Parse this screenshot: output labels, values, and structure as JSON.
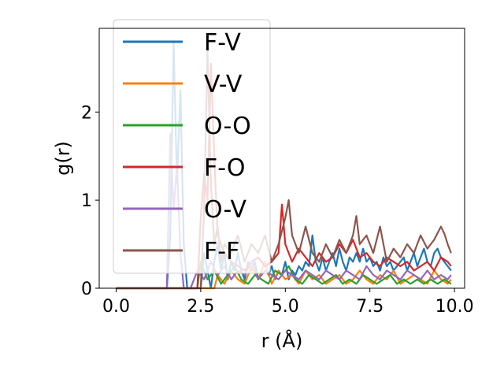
{
  "chart_data": {
    "type": "line",
    "title": "",
    "xlabel": "r (Å)",
    "ylabel": "g(r)",
    "xlim": [
      -0.5,
      10.3
    ],
    "ylim": [
      0,
      2.95
    ],
    "xticks": [
      0.0,
      2.5,
      5.0,
      7.5,
      10.0
    ],
    "xtick_labels": [
      "0.0",
      "2.5",
      "5.0",
      "7.5",
      "10.0"
    ],
    "yticks": [
      0,
      1,
      2
    ],
    "ytick_labels": [
      "0",
      "1",
      "2"
    ],
    "grid": false,
    "legend_position": "upper-left",
    "series": [
      {
        "name": "F-V",
        "color": "#1f77b4",
        "x": [
          0.0,
          1.4,
          1.5,
          1.6,
          1.7,
          1.8,
          1.9,
          2.0,
          2.1,
          2.2,
          2.3,
          2.4,
          2.5,
          2.6,
          2.7,
          2.8,
          2.9,
          3.0,
          3.1,
          3.2,
          3.3,
          3.4,
          3.5,
          3.6,
          3.7,
          3.8,
          3.9,
          4.0,
          4.1,
          4.2,
          4.3,
          4.4,
          4.5,
          4.6,
          4.7,
          4.8,
          4.9,
          5.0,
          5.1,
          5.2,
          5.3,
          5.4,
          5.5,
          5.6,
          5.7,
          5.8,
          5.9,
          6.0,
          6.1,
          6.2,
          6.3,
          6.4,
          6.5,
          6.6,
          6.7,
          6.8,
          6.9,
          7.0,
          7.1,
          7.2,
          7.3,
          7.4,
          7.5,
          7.6,
          7.7,
          7.8,
          7.9,
          8.0,
          8.1,
          8.2,
          8.3,
          8.4,
          8.5,
          8.6,
          8.7,
          8.8,
          8.9,
          9.0,
          9.1,
          9.2,
          9.3,
          9.4,
          9.5,
          9.6,
          9.7,
          9.8,
          9.9
        ],
        "y": [
          0,
          0,
          0,
          0.6,
          2.78,
          1.2,
          2.25,
          0.5,
          0,
          0,
          0,
          0,
          0,
          0.4,
          0.2,
          0,
          0.3,
          0.5,
          0.2,
          0.4,
          0.1,
          0.3,
          0.2,
          0.4,
          0.2,
          0.1,
          0.3,
          0.2,
          0.3,
          0.1,
          0.2,
          0.3,
          0.15,
          0.25,
          0.1,
          0.2,
          0.15,
          0.3,
          0.1,
          0.2,
          0.15,
          0.25,
          0.2,
          0.3,
          0.25,
          0.6,
          0.3,
          0.2,
          0.35,
          0.2,
          0.3,
          0.4,
          0.25,
          0.45,
          0.3,
          0.2,
          0.35,
          0.3,
          0.4,
          0.3,
          0.45,
          0.3,
          0.35,
          0.25,
          0.3,
          0.2,
          0.35,
          0.25,
          0.3,
          0.2,
          0.25,
          0.3,
          0.35,
          0.2,
          0.3,
          0.4,
          0.25,
          0.35,
          0.45,
          0.3,
          0.25,
          0.4,
          0.45,
          0.35,
          0.3,
          0.25,
          0.2
        ]
      },
      {
        "name": "V-V",
        "color": "#ff7f0e",
        "x": [
          0.0,
          2.9,
          3.0,
          3.2,
          3.4,
          3.6,
          3.8,
          4.0,
          4.2,
          4.4,
          4.6,
          4.8,
          5.0,
          5.2,
          5.4,
          5.6,
          5.8,
          6.0,
          6.2,
          6.4,
          6.6,
          6.8,
          7.0,
          7.2,
          7.4,
          7.6,
          7.8,
          8.0,
          8.2,
          8.4,
          8.6,
          8.8,
          9.0,
          9.2,
          9.4,
          9.6,
          9.8,
          9.9
        ],
        "y": [
          0,
          0,
          0.15,
          0.05,
          0.2,
          0.1,
          0.05,
          0.25,
          0.1,
          0.3,
          0.05,
          0.2,
          0.1,
          0.15,
          0.05,
          0.2,
          0.1,
          0.15,
          0.05,
          0.1,
          0.15,
          0.05,
          0.1,
          0.2,
          0.1,
          0.05,
          0.15,
          0.1,
          0.2,
          0.05,
          0.1,
          0.15,
          0.1,
          0.05,
          0.2,
          0.1,
          0.05,
          0.1
        ]
      },
      {
        "name": "O-O",
        "color": "#2ca02c",
        "x": [
          0.0,
          2.4,
          2.5,
          2.7,
          2.9,
          3.1,
          3.3,
          3.5,
          3.7,
          3.9,
          4.1,
          4.3,
          4.5,
          4.7,
          4.9,
          5.1,
          5.3,
          5.5,
          5.7,
          5.9,
          6.1,
          6.3,
          6.5,
          6.7,
          6.9,
          7.1,
          7.3,
          7.5,
          7.7,
          7.9,
          8.1,
          8.3,
          8.5,
          8.7,
          8.9,
          9.1,
          9.3,
          9.5,
          9.7,
          9.9
        ],
        "y": [
          0,
          0,
          0.3,
          0.1,
          0.2,
          0.05,
          0.15,
          0.25,
          0.1,
          0.05,
          0.15,
          0.1,
          0.05,
          0.2,
          0.15,
          0.25,
          0.1,
          0.05,
          0.15,
          0.1,
          0.05,
          0.1,
          0.15,
          0.05,
          0.1,
          0.05,
          0.15,
          0.1,
          0.05,
          0.1,
          0.15,
          0.05,
          0.1,
          0.05,
          0.1,
          0.05,
          0.1,
          0.05,
          0.1,
          0.05
        ]
      },
      {
        "name": "F-O",
        "color": "#d62728",
        "x": [
          0.0,
          2.4,
          2.5,
          2.6,
          2.7,
          2.8,
          2.9,
          3.0,
          3.2,
          3.4,
          3.6,
          3.8,
          4.0,
          4.2,
          4.4,
          4.6,
          4.8,
          4.9,
          5.0,
          5.2,
          5.4,
          5.6,
          5.8,
          6.0,
          6.2,
          6.4,
          6.6,
          6.8,
          7.0,
          7.2,
          7.4,
          7.6,
          7.8,
          8.0,
          8.2,
          8.4,
          8.6,
          8.8,
          9.0,
          9.2,
          9.4,
          9.6,
          9.8,
          9.9
        ],
        "y": [
          0,
          0,
          0.8,
          1.3,
          1.0,
          2.55,
          1.5,
          0.6,
          0.4,
          0.3,
          0.25,
          0.2,
          0.3,
          0.35,
          0.25,
          0.3,
          0.4,
          0.95,
          0.5,
          0.3,
          0.45,
          0.35,
          0.25,
          0.4,
          0.3,
          0.35,
          0.5,
          0.4,
          0.55,
          0.35,
          0.4,
          0.3,
          0.25,
          0.35,
          0.3,
          0.25,
          0.3,
          0.2,
          0.25,
          0.3,
          0.2,
          0.35,
          0.3,
          0.25
        ]
      },
      {
        "name": "O-V",
        "color": "#9467bd",
        "x": [
          0.0,
          1.5,
          1.6,
          1.7,
          1.8,
          1.9,
          2.0,
          2.2,
          2.4,
          2.6,
          2.8,
          3.0,
          3.2,
          3.4,
          3.6,
          3.8,
          4.0,
          4.2,
          4.4,
          4.6,
          4.8,
          5.0,
          5.2,
          5.4,
          5.6,
          5.8,
          6.0,
          6.2,
          6.4,
          6.6,
          6.8,
          7.0,
          7.2,
          7.4,
          7.6,
          7.8,
          8.0,
          8.2,
          8.4,
          8.6,
          8.8,
          9.0,
          9.2,
          9.4,
          9.6,
          9.8,
          9.9
        ],
        "y": [
          0,
          0,
          1.75,
          0.9,
          1.4,
          0.4,
          0,
          0,
          0.2,
          0.1,
          0.3,
          0.15,
          0.25,
          0.1,
          0.2,
          0.15,
          0.3,
          0.1,
          0.2,
          0.15,
          0.1,
          0.2,
          0.15,
          0.1,
          0.2,
          0.15,
          0.1,
          0.2,
          0.15,
          0.1,
          0.2,
          0.15,
          0.1,
          0.25,
          0.15,
          0.1,
          0.2,
          0.15,
          0.1,
          0.2,
          0.15,
          0.1,
          0.2,
          0.1,
          0.15,
          0.1,
          0.15
        ]
      },
      {
        "name": "F-F",
        "color": "#8c564b",
        "x": [
          0.0,
          2.5,
          2.6,
          2.7,
          2.8,
          2.9,
          3.0,
          3.1,
          3.2,
          3.4,
          3.6,
          3.8,
          4.0,
          4.2,
          4.4,
          4.6,
          4.8,
          5.0,
          5.1,
          5.2,
          5.4,
          5.6,
          5.8,
          6.0,
          6.2,
          6.4,
          6.6,
          6.8,
          7.0,
          7.1,
          7.2,
          7.4,
          7.6,
          7.8,
          8.0,
          8.2,
          8.4,
          8.6,
          8.8,
          9.0,
          9.2,
          9.4,
          9.6,
          9.7,
          9.8,
          9.9
        ],
        "y": [
          0,
          0,
          0.9,
          2.7,
          1.2,
          0.5,
          0.7,
          0.3,
          0.5,
          0.4,
          0.6,
          0.3,
          0.5,
          0.4,
          0.6,
          0.3,
          0.5,
          0.8,
          1.0,
          0.6,
          0.4,
          0.7,
          0.4,
          0.3,
          0.5,
          0.35,
          0.55,
          0.4,
          0.6,
          0.82,
          0.5,
          0.6,
          0.4,
          0.7,
          0.3,
          0.45,
          0.35,
          0.5,
          0.4,
          0.6,
          0.45,
          0.55,
          0.7,
          0.62,
          0.5,
          0.4
        ]
      }
    ]
  }
}
